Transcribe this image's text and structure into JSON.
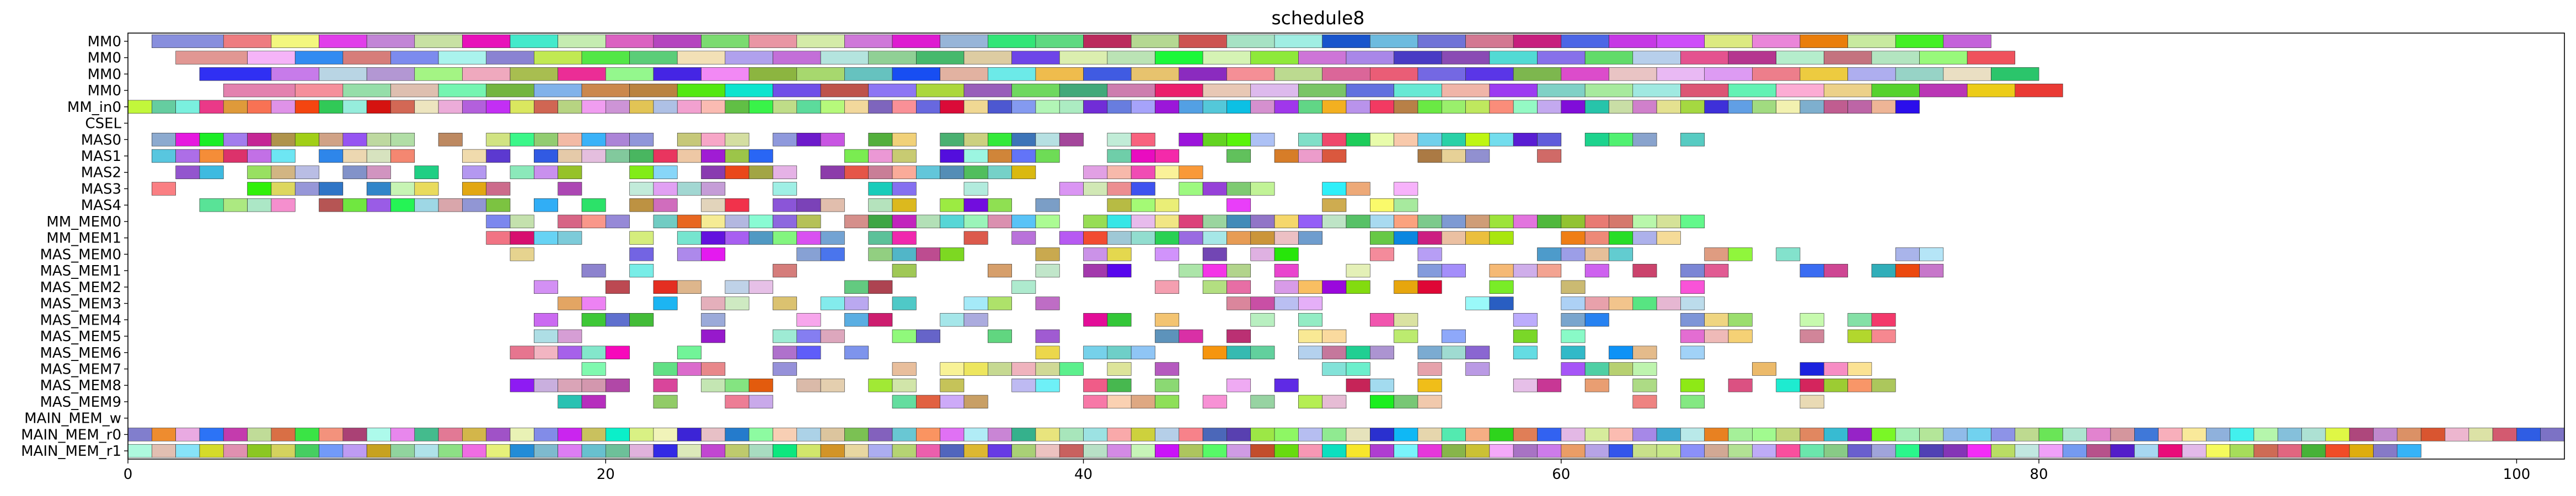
{
  "chart_data": {
    "type": "gantt",
    "title": "schedule8",
    "xlabel": "",
    "ylabel": "",
    "xlim": [
      0,
      102
    ],
    "xticks": [
      0,
      20,
      40,
      60,
      80,
      100
    ],
    "grid": false,
    "legend": "none",
    "rows": [
      "MM0",
      "MM0",
      "MM0",
      "MM0",
      "MM_in0",
      "CSEL",
      "MAS0",
      "MAS1",
      "MAS2",
      "MAS3",
      "MAS4",
      "MM_MEM0",
      "MM_MEM1",
      "MAS_MEM0",
      "MAS_MEM1",
      "MAS_MEM2",
      "MAS_MEM3",
      "MAS_MEM4",
      "MAS_MEM5",
      "MAS_MEM6",
      "MAS_MEM7",
      "MAS_MEM8",
      "MAS_MEM9",
      "MAIN_MEM_w",
      "MAIN_MEM_r0",
      "MAIN_MEM_r1"
    ],
    "bars": {
      "MM0_a": [
        [
          1,
          4
        ],
        [
          4,
          6
        ],
        [
          6,
          8
        ],
        [
          8,
          10
        ],
        [
          10,
          12
        ],
        [
          12,
          14
        ],
        [
          14,
          16
        ],
        [
          16,
          18
        ],
        [
          18,
          20
        ],
        [
          20,
          22
        ],
        [
          22,
          24
        ],
        [
          24,
          26
        ],
        [
          26,
          28
        ],
        [
          28,
          30
        ],
        [
          30,
          32
        ],
        [
          32,
          34
        ],
        [
          34,
          36
        ],
        [
          36,
          38
        ],
        [
          38,
          40
        ],
        [
          40,
          42
        ],
        [
          42,
          44
        ],
        [
          44,
          46
        ],
        [
          46,
          48
        ],
        [
          48,
          50
        ],
        [
          50,
          52
        ],
        [
          52,
          54
        ],
        [
          54,
          56
        ],
        [
          56,
          58
        ],
        [
          58,
          60
        ],
        [
          60,
          62
        ],
        [
          62,
          64
        ],
        [
          64,
          66
        ],
        [
          66,
          68
        ],
        [
          68,
          70
        ],
        [
          70,
          72
        ],
        [
          72,
          74
        ],
        [
          74,
          76
        ],
        [
          76,
          78
        ]
      ],
      "MM0_b": [
        [
          2,
          5
        ],
        [
          5,
          7
        ],
        [
          7,
          9
        ],
        [
          9,
          11
        ],
        [
          11,
          13
        ],
        [
          13,
          15
        ],
        [
          15,
          17
        ],
        [
          17,
          19
        ],
        [
          19,
          21
        ],
        [
          21,
          23
        ],
        [
          23,
          25
        ],
        [
          25,
          27
        ],
        [
          27,
          29
        ],
        [
          29,
          31
        ],
        [
          31,
          33
        ],
        [
          33,
          35
        ],
        [
          35,
          37
        ],
        [
          37,
          39
        ],
        [
          39,
          41
        ],
        [
          41,
          43
        ],
        [
          43,
          45
        ],
        [
          45,
          47
        ],
        [
          47,
          49
        ],
        [
          49,
          51
        ],
        [
          51,
          53
        ],
        [
          53,
          55
        ],
        [
          55,
          57
        ],
        [
          57,
          59
        ],
        [
          59,
          61
        ],
        [
          61,
          63
        ],
        [
          63,
          65
        ],
        [
          65,
          67
        ],
        [
          67,
          69
        ],
        [
          69,
          71
        ],
        [
          71,
          73
        ],
        [
          73,
          75
        ],
        [
          75,
          77
        ],
        [
          77,
          79
        ]
      ],
      "MM0_c": [
        [
          3,
          6
        ],
        [
          6,
          8
        ],
        [
          8,
          10
        ],
        [
          10,
          12
        ],
        [
          12,
          14
        ],
        [
          14,
          16
        ],
        [
          16,
          18
        ],
        [
          18,
          20
        ],
        [
          20,
          22
        ],
        [
          22,
          24
        ],
        [
          24,
          26
        ],
        [
          26,
          28
        ],
        [
          28,
          30
        ],
        [
          30,
          32
        ],
        [
          32,
          34
        ],
        [
          34,
          36
        ],
        [
          36,
          38
        ],
        [
          38,
          40
        ],
        [
          40,
          42
        ],
        [
          42,
          44
        ],
        [
          44,
          46
        ],
        [
          46,
          48
        ],
        [
          48,
          50
        ],
        [
          50,
          52
        ],
        [
          52,
          54
        ],
        [
          54,
          56
        ],
        [
          56,
          58
        ],
        [
          58,
          60
        ],
        [
          60,
          62
        ],
        [
          62,
          64
        ],
        [
          64,
          66
        ],
        [
          66,
          68
        ],
        [
          68,
          70
        ],
        [
          70,
          72
        ],
        [
          72,
          74
        ],
        [
          74,
          76
        ],
        [
          76,
          78
        ],
        [
          78,
          80
        ]
      ],
      "MM0_d": [
        [
          4,
          7
        ],
        [
          7,
          9
        ],
        [
          9,
          11
        ],
        [
          11,
          13
        ],
        [
          13,
          15
        ],
        [
          15,
          17
        ],
        [
          17,
          19
        ],
        [
          19,
          21
        ],
        [
          21,
          23
        ],
        [
          23,
          25
        ],
        [
          25,
          27
        ],
        [
          27,
          29
        ],
        [
          29,
          31
        ],
        [
          31,
          33
        ],
        [
          33,
          35
        ],
        [
          35,
          37
        ],
        [
          37,
          39
        ],
        [
          39,
          41
        ],
        [
          41,
          43
        ],
        [
          43,
          45
        ],
        [
          45,
          47
        ],
        [
          47,
          49
        ],
        [
          49,
          51
        ],
        [
          51,
          53
        ],
        [
          53,
          55
        ],
        [
          55,
          57
        ],
        [
          57,
          59
        ],
        [
          59,
          61
        ],
        [
          61,
          63
        ],
        [
          63,
          65
        ],
        [
          65,
          67
        ],
        [
          67,
          69
        ],
        [
          69,
          71
        ],
        [
          71,
          73
        ],
        [
          73,
          75
        ],
        [
          75,
          77
        ],
        [
          77,
          79
        ],
        [
          79,
          81
        ]
      ]
    }
  }
}
